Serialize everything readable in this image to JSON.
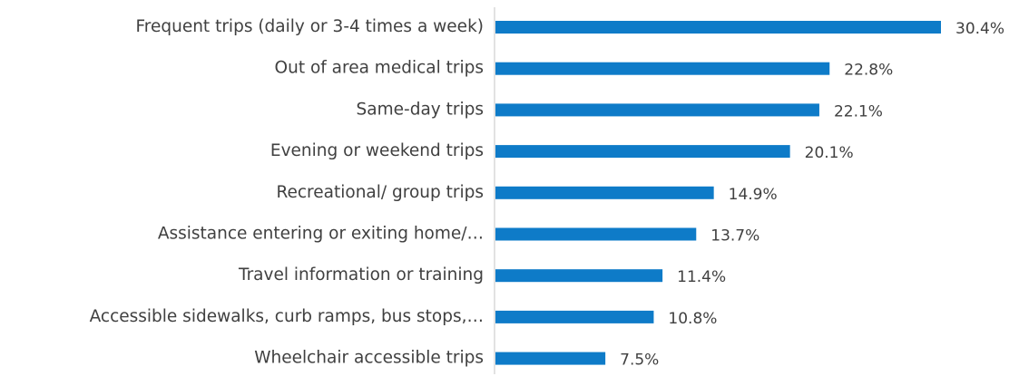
{
  "chart_data": {
    "type": "bar",
    "orientation": "horizontal",
    "categories": [
      "Frequent trips (daily or 3-4 times a week)",
      "Out of area medical trips",
      "Same-day trips",
      "Evening or weekend trips",
      "Recreational/ group trips",
      "Assistance entering or exiting home/…",
      "Travel information or training",
      "Accessible sidewalks, curb ramps, bus stops,…",
      "Wheelchair accessible trips"
    ],
    "values": [
      30.4,
      22.8,
      22.1,
      20.1,
      14.9,
      13.7,
      11.4,
      10.8,
      7.5
    ],
    "value_labels": [
      "30.4%",
      "22.8%",
      "22.1%",
      "20.1%",
      "14.9%",
      "13.7%",
      "11.4%",
      "10.8%",
      "7.5%"
    ],
    "color": "#0e7bc8"
  }
}
